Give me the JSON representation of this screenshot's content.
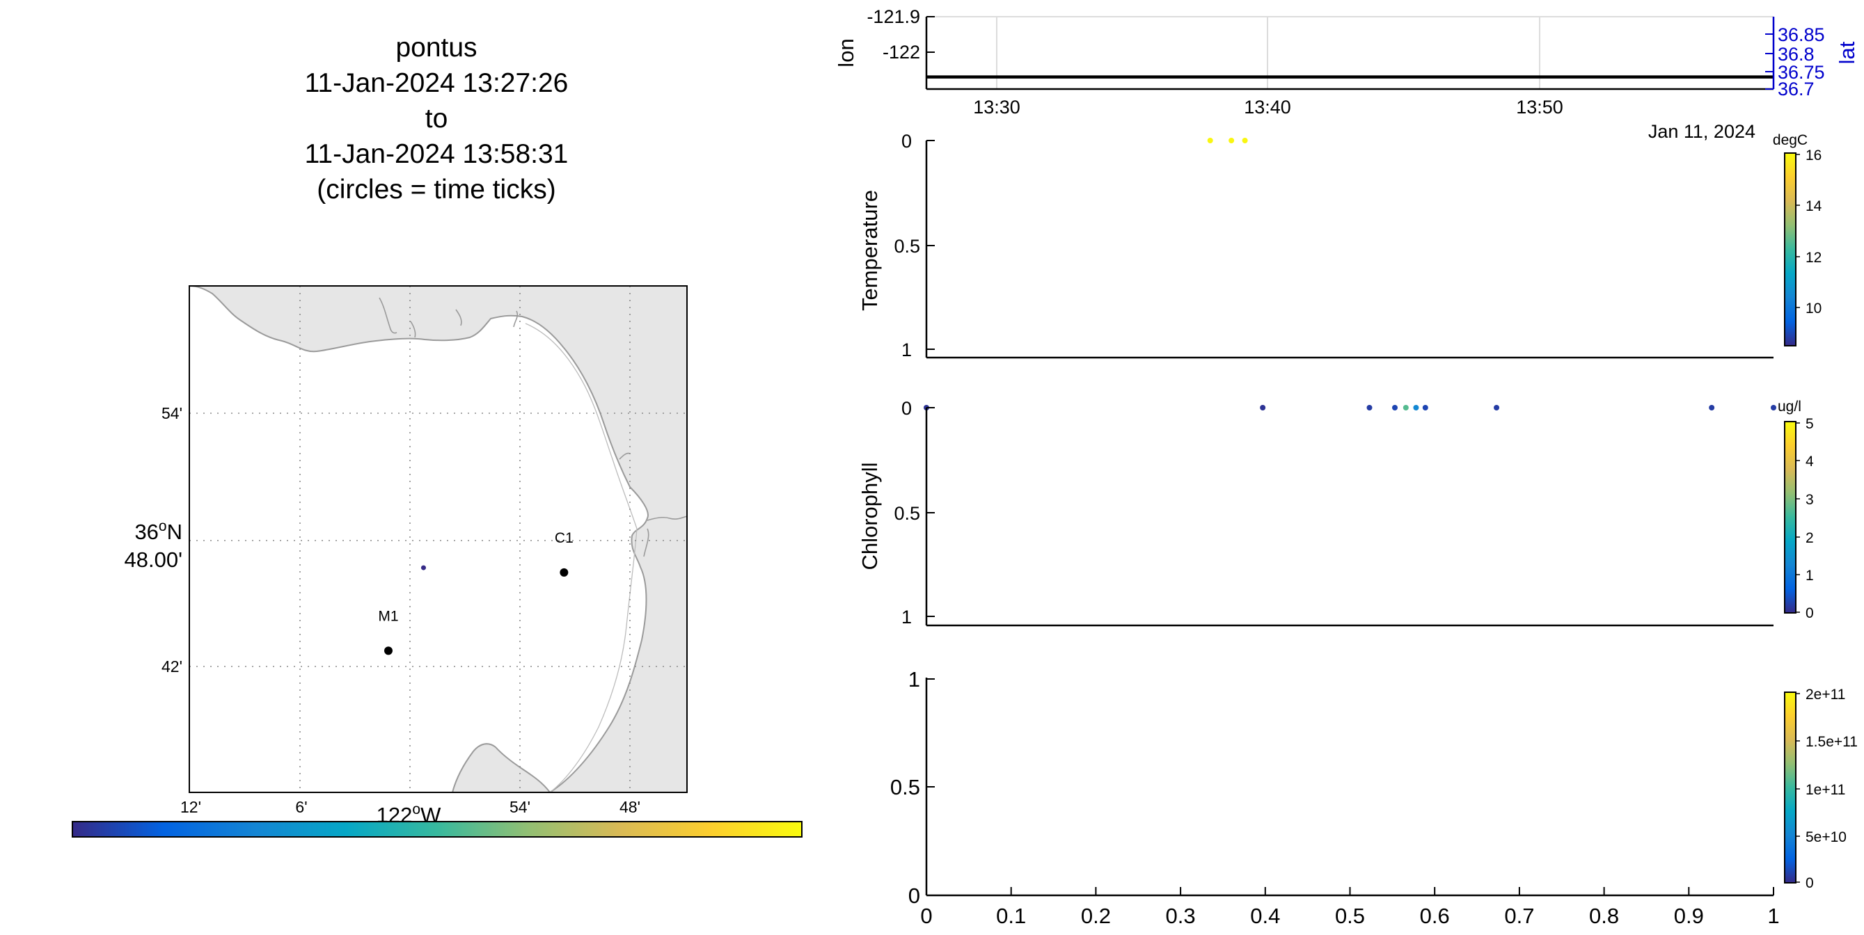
{
  "title_lines": [
    "pontus",
    "11-Jan-2024 13:27:26",
    "to",
    "11-Jan-2024 13:58:31",
    "(circles = time ticks)"
  ],
  "map": {
    "lat_ticks": [
      "54'",
      "36°N 48.00'",
      "42'"
    ],
    "lon_ticks": [
      "12'",
      "6'",
      "122°W",
      "54'",
      "48'"
    ],
    "stations": [
      {
        "name": "M1",
        "lon": -122.03,
        "lat": 36.747
      },
      {
        "name": "C1",
        "lon": -121.88,
        "lat": 36.797
      }
    ],
    "track_points": [
      {
        "lon": -122.0,
        "lat": 36.8
      }
    ],
    "colorbar": {
      "min": 0,
      "max": 1
    }
  },
  "chart_data": [
    {
      "type": "line",
      "name": "position",
      "x_ticks": [
        "13:30",
        "13:40",
        "13:50"
      ],
      "date_label": "Jan 11, 2024",
      "ylabel_left": "lon",
      "ylabel_right": "lat",
      "yticks_left": [
        "-121.9",
        "-122"
      ],
      "yticks_right": [
        "36.85",
        "36.8",
        "36.75",
        "36.7"
      ],
      "ylim_left": [
        -122.02,
        -121.9
      ],
      "ylim_right": [
        36.7,
        36.87
      ],
      "xlim": [
        "13:27:26",
        "13:58:31"
      ],
      "grid": true,
      "series": [
        {
          "name": "lon",
          "x": [
            "13:27:26",
            "13:58:31"
          ],
          "y": [
            -122.0,
            -122.0
          ]
        }
      ]
    },
    {
      "type": "scatter",
      "name": "temperature",
      "ylabel": "Temperature",
      "yticks": [
        "0",
        "0.5",
        "1"
      ],
      "ylim": [
        1,
        0
      ],
      "colorbar_unit": "degC",
      "colorbar_ticks": [
        "16",
        "14",
        "12",
        "10"
      ],
      "clim": [
        8.3,
        16.3
      ],
      "points": [
        {
          "x": 0.335,
          "y": 0,
          "value": 16.2
        },
        {
          "x": 0.36,
          "y": 0,
          "value": 16.2
        },
        {
          "x": 0.376,
          "y": 0,
          "value": 16.2
        }
      ]
    },
    {
      "type": "scatter",
      "name": "chlorophyll",
      "ylabel": "Chlorophyll",
      "yticks": [
        "0",
        "0.5",
        "1"
      ],
      "ylim": [
        1,
        0
      ],
      "colorbar_unit": "ug/l",
      "colorbar_ticks": [
        "5",
        "4",
        "3",
        "2",
        "1",
        "0"
      ],
      "clim": [
        0,
        5
      ],
      "points": [
        {
          "x": 0.0,
          "y": 0,
          "value": 0.1
        },
        {
          "x": 0.397,
          "y": 0,
          "value": 0.1
        },
        {
          "x": 0.523,
          "y": 0,
          "value": 0.2
        },
        {
          "x": 0.553,
          "y": 0,
          "value": 0.3
        },
        {
          "x": 0.566,
          "y": 0,
          "value": 2.7
        },
        {
          "x": 0.578,
          "y": 0,
          "value": 1.3
        },
        {
          "x": 0.589,
          "y": 0,
          "value": 0.3
        },
        {
          "x": 0.673,
          "y": 0,
          "value": 0.2
        },
        {
          "x": 0.927,
          "y": 0,
          "value": 0.2
        },
        {
          "x": 1.0,
          "y": 0,
          "value": 0.2
        }
      ]
    },
    {
      "type": "scatter",
      "name": "empty",
      "yticks": [
        "0",
        "0.5",
        "1"
      ],
      "xticks": [
        "0",
        "0.1",
        "0.2",
        "0.3",
        "0.4",
        "0.5",
        "0.6",
        "0.7",
        "0.8",
        "0.9",
        "1"
      ],
      "xlim": [
        0,
        1
      ],
      "ylim": [
        0,
        1
      ],
      "colorbar_ticks": [
        "2e+11",
        "1.5e+11",
        "1e+11",
        "5e+10",
        "0"
      ],
      "clim": [
        0,
        200000000000
      ],
      "points": []
    }
  ],
  "colors": {
    "land": "#e6e6e6",
    "coast": "#9a9a9a",
    "axis": "#000000",
    "lat_axis": "#0000cc",
    "track": "#000000",
    "grid_dots": "#8c8c8c",
    "parula": [
      "#352a87",
      "#0363e1",
      "#1485d4",
      "#06a7c6",
      "#38b99e",
      "#92bf73",
      "#d9ba56",
      "#fcce2e",
      "#f9fb0e"
    ]
  }
}
